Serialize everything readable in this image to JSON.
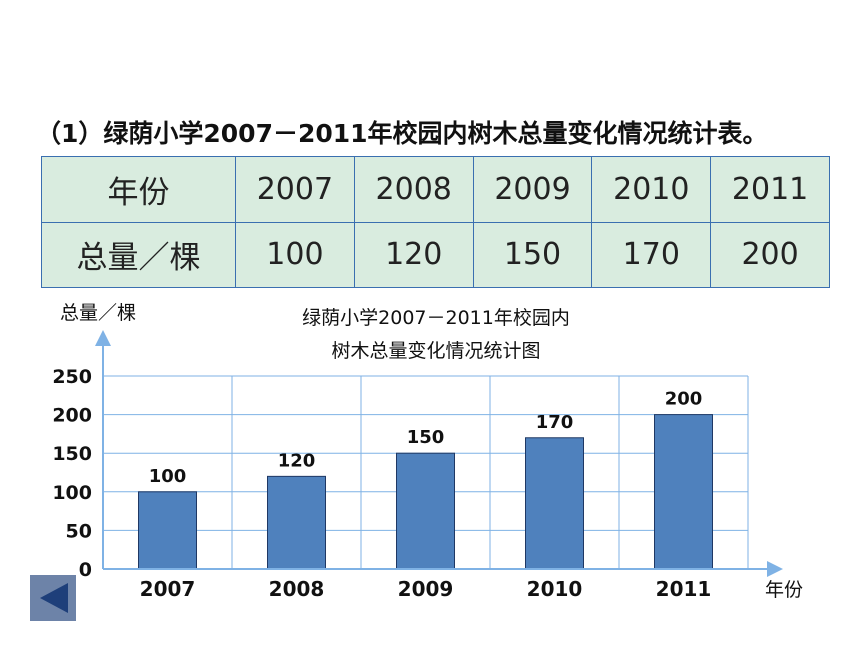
{
  "heading": "（1）绿荫小学2007－2011年校园内树木总量变化情况统计表。",
  "table": {
    "row_headers": [
      "年份",
      "总量／棵"
    ],
    "years": [
      "2007",
      "2008",
      "2009",
      "2010",
      "2011"
    ],
    "totals": [
      "100",
      "120",
      "150",
      "170",
      "200"
    ]
  },
  "nav": {
    "icon": "triangle-left-icon",
    "color": "#6d83a8"
  },
  "chart_data": {
    "type": "bar",
    "title": [
      "绿荫小学2007－2011年校园内",
      "树木总量变化情况统计图"
    ],
    "xlabel": "年份",
    "ylabel": "总量／棵",
    "categories": [
      "2007",
      "2008",
      "2009",
      "2010",
      "2011"
    ],
    "values": [
      100,
      120,
      150,
      170,
      200
    ],
    "data_labels": [
      "100",
      "120",
      "150",
      "170",
      "200"
    ],
    "yticks": [
      0,
      50,
      100,
      150,
      200,
      250
    ],
    "ylim": [
      0,
      250
    ],
    "grid": true,
    "bar_color": "#4f81bd"
  }
}
